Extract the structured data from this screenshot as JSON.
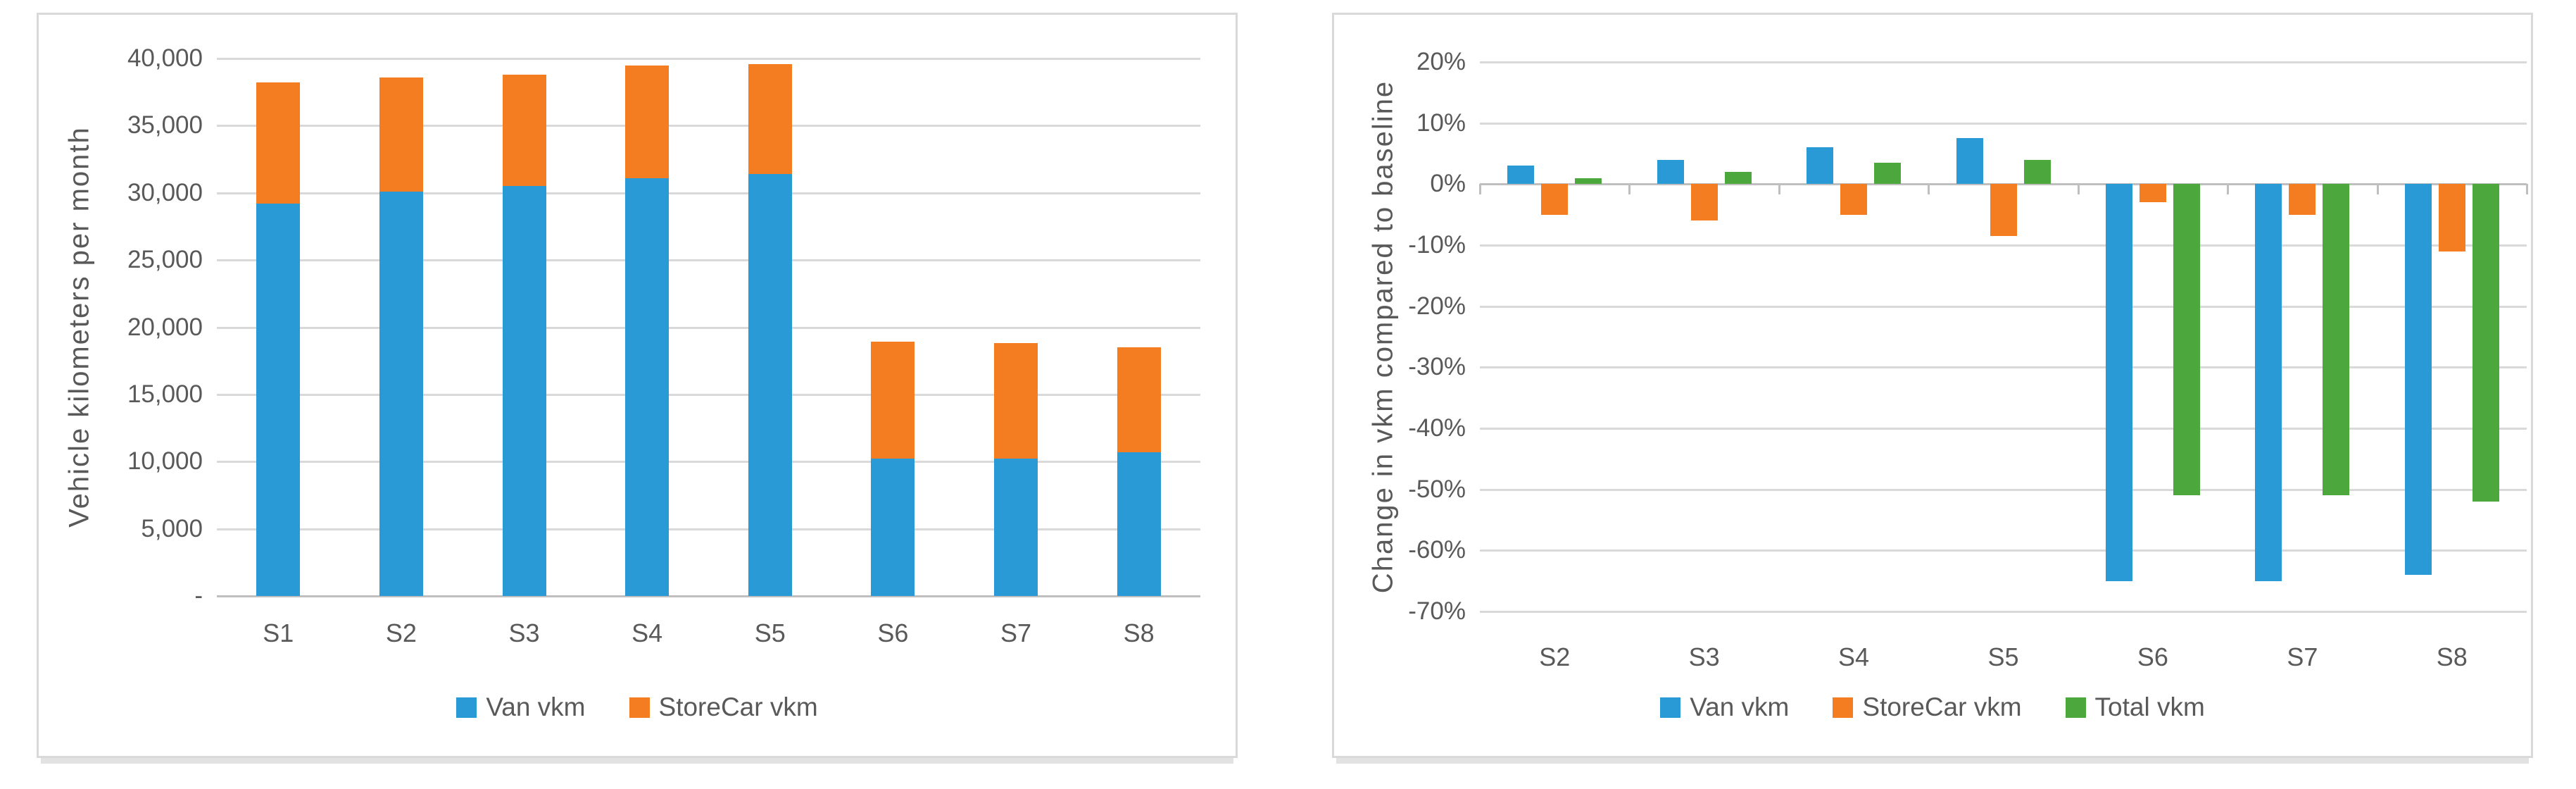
{
  "page": {
    "background_color": "#ffffff",
    "panel_border_color": "#d9d9d9",
    "gridline_color": "#d9d9d9",
    "axis_line_color": "#bfbfbf",
    "text_color": "#595959"
  },
  "chart_data": [
    {
      "id": "vkm-per-month",
      "type": "bar",
      "subtype": "stacked",
      "title": "",
      "xlabel": "",
      "ylabel": "Vehicle kilometers per month",
      "categories": [
        "S1",
        "S2",
        "S3",
        "S4",
        "S5",
        "S6",
        "S7",
        "S8"
      ],
      "series": [
        {
          "name": "Van vkm",
          "color": "#299ad6",
          "values": [
            29200,
            30100,
            30500,
            31100,
            31400,
            10200,
            10200,
            10700
          ]
        },
        {
          "name": "StoreCar vkm",
          "color": "#f47c21",
          "values": [
            9000,
            8500,
            8300,
            8400,
            8200,
            8700,
            8600,
            7800
          ]
        }
      ],
      "ylim": [
        0,
        40000
      ],
      "grid": true,
      "legend_position": "bottom",
      "yticks": [
        {
          "value": 40000,
          "label": "40,000"
        },
        {
          "value": 35000,
          "label": "35,000"
        },
        {
          "value": 30000,
          "label": "30,000"
        },
        {
          "value": 25000,
          "label": "25,000"
        },
        {
          "value": 20000,
          "label": "20,000"
        },
        {
          "value": 15000,
          "label": "15,000"
        },
        {
          "value": 10000,
          "label": "10,000"
        },
        {
          "value": 5000,
          "label": "5,000"
        },
        {
          "value": 0,
          "label": "-"
        }
      ]
    },
    {
      "id": "vkm-change-vs-baseline",
      "type": "bar",
      "subtype": "grouped",
      "title": "",
      "xlabel": "",
      "ylabel": "Change in vkm compared to baseline",
      "categories": [
        "S2",
        "S3",
        "S4",
        "S5",
        "S6",
        "S7",
        "S8"
      ],
      "series": [
        {
          "name": "Van vkm",
          "color": "#299ad6",
          "values": [
            3,
            4,
            6,
            7.5,
            -65,
            -65,
            -64
          ]
        },
        {
          "name": "StoreCar vkm",
          "color": "#f47c21",
          "values": [
            -5,
            -6,
            -5,
            -8.5,
            -3,
            -5,
            -11
          ]
        },
        {
          "name": "Total vkm",
          "color": "#4ca73c",
          "values": [
            1,
            2,
            3.5,
            4,
            -51,
            -51,
            -52
          ]
        }
      ],
      "ylim": [
        -70,
        20
      ],
      "grid": true,
      "legend_position": "bottom",
      "yticks": [
        {
          "value": 20,
          "label": "20%"
        },
        {
          "value": 10,
          "label": "10%"
        },
        {
          "value": 0,
          "label": "0%"
        },
        {
          "value": -10,
          "label": "-10%"
        },
        {
          "value": -20,
          "label": "-20%"
        },
        {
          "value": -30,
          "label": "-30%"
        },
        {
          "value": -40,
          "label": "-40%"
        },
        {
          "value": -50,
          "label": "-50%"
        },
        {
          "value": -60,
          "label": "-60%"
        },
        {
          "value": -70,
          "label": "-70%"
        }
      ]
    }
  ]
}
